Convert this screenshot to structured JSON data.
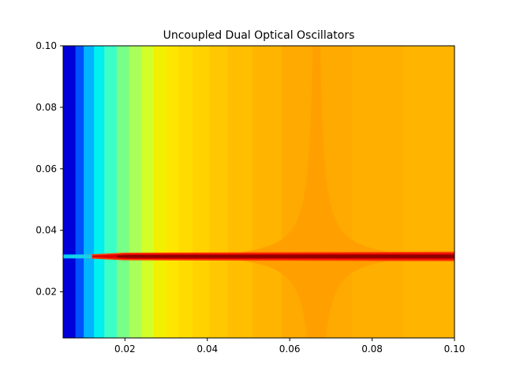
{
  "chart_data": {
    "type": "heatmap",
    "title": "Uncoupled Dual Optical Oscillators",
    "xlabel": "",
    "ylabel": "",
    "xlim": [
      0.005,
      0.1
    ],
    "ylim": [
      0.005,
      0.1
    ],
    "x_ticks": [
      0.02,
      0.04,
      0.06,
      0.08,
      0.1
    ],
    "x_tick_labels": [
      "0.02",
      "0.04",
      "0.06",
      "0.08",
      "0.10"
    ],
    "y_ticks": [
      0.02,
      0.04,
      0.06,
      0.08,
      0.1
    ],
    "y_tick_labels": [
      "0.02",
      "0.04",
      "0.06",
      "0.08",
      "0.10"
    ],
    "colormap": "jet",
    "colorbar": false,
    "grid": false,
    "features": {
      "resonance_line_y": 0.0315,
      "cusp_x": 0.0665,
      "left_boundary_x": 0.005
    },
    "column_bands": [
      {
        "x0": 0.005,
        "x1": 0.008,
        "color": "#0000d8"
      },
      {
        "x0": 0.008,
        "x1": 0.01,
        "color": "#0050ff"
      },
      {
        "x0": 0.01,
        "x1": 0.0125,
        "color": "#00b4ff"
      },
      {
        "x0": 0.0125,
        "x1": 0.015,
        "color": "#00f0f0"
      },
      {
        "x0": 0.015,
        "x1": 0.018,
        "color": "#3cffc8"
      },
      {
        "x0": 0.018,
        "x1": 0.021,
        "color": "#78ff88"
      },
      {
        "x0": 0.021,
        "x1": 0.024,
        "color": "#aaff5a"
      },
      {
        "x0": 0.024,
        "x1": 0.027,
        "color": "#d2ff28"
      },
      {
        "x0": 0.027,
        "x1": 0.03,
        "color": "#f0f000"
      },
      {
        "x0": 0.03,
        "x1": 0.033,
        "color": "#ffe600"
      },
      {
        "x0": 0.033,
        "x1": 0.0365,
        "color": "#ffdc00"
      },
      {
        "x0": 0.0365,
        "x1": 0.0405,
        "color": "#ffd200"
      },
      {
        "x0": 0.0405,
        "x1": 0.045,
        "color": "#ffc800"
      },
      {
        "x0": 0.045,
        "x1": 0.051,
        "color": "#ffbe00"
      },
      {
        "x0": 0.051,
        "x1": 0.058,
        "color": "#ffb400"
      },
      {
        "x0": 0.058,
        "x1": 0.075,
        "color": "#ffaa00"
      },
      {
        "x0": 0.075,
        "x1": 0.0875,
        "color": "#ffaf00"
      },
      {
        "x0": 0.0875,
        "x1": 0.1,
        "color": "#ffb400"
      }
    ],
    "colors": {
      "cusp": "#ffa000",
      "ridge_outer": "#ff3c00",
      "ridge_mid": "#e00000",
      "ridge_core": "#8c0000",
      "frame": "#000000"
    }
  }
}
